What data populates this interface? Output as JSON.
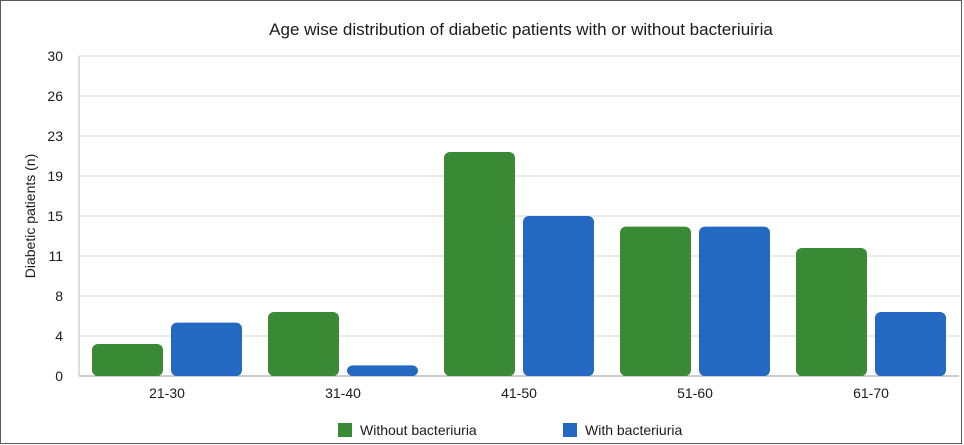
{
  "chart_data": {
    "type": "bar",
    "title": "Age wise distribution of diabetic patients with or without bacteriuiria",
    "xlabel": "",
    "ylabel": "Diabetic patients (n)",
    "categories": [
      "21-30",
      "31-40",
      "41-50",
      "51-60",
      "61-70"
    ],
    "y_ticks": [
      "0",
      "4",
      "8",
      "11",
      "15",
      "19",
      "23",
      "26",
      "30"
    ],
    "ylim": [
      0,
      30
    ],
    "grid": true,
    "legend_position": "bottom",
    "series": [
      {
        "name": "Without bacteriuria",
        "color": "#3a8a35",
        "values": [
          3,
          6,
          21,
          14,
          12
        ]
      },
      {
        "name": "With bacteriuria",
        "color": "#2369c1",
        "values": [
          5,
          1,
          15,
          14,
          6
        ]
      }
    ]
  }
}
